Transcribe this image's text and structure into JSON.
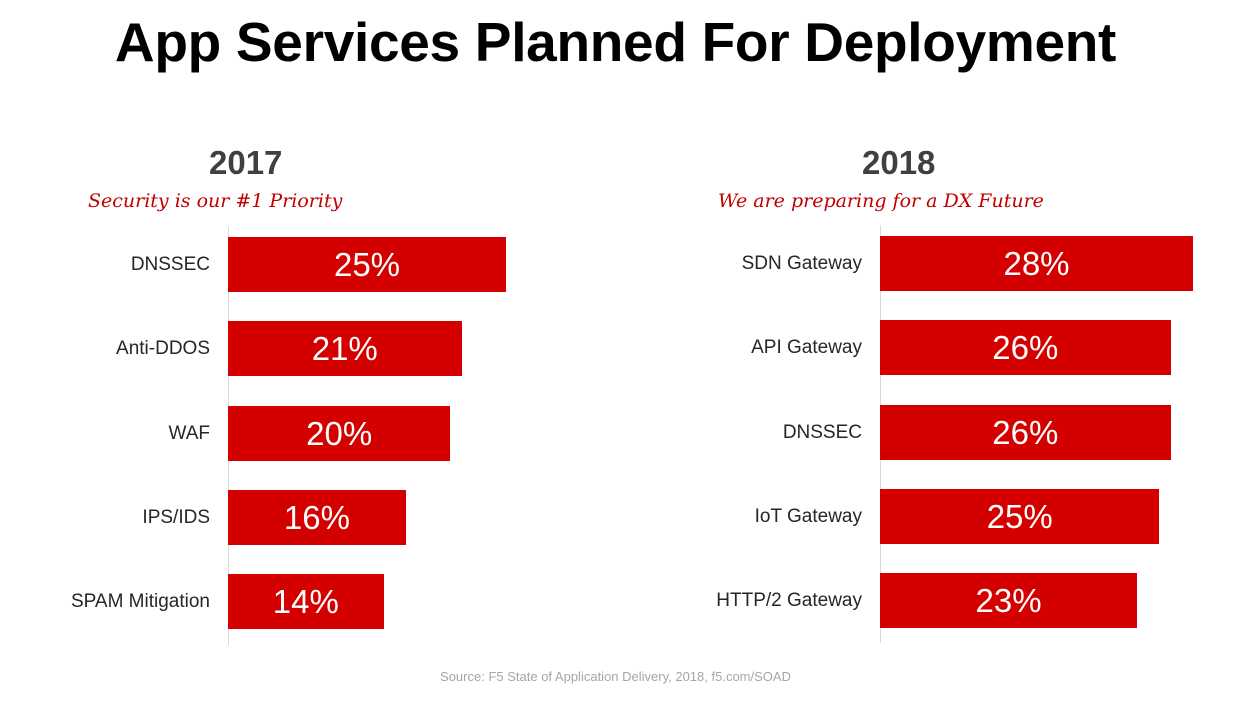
{
  "title": "App Services Planned For Deployment",
  "source": "Source: F5 State of Application Delivery, 2018, f5.com/SOAD",
  "colors": {
    "bar": "#d40000",
    "subtitle": "#c00000",
    "year": "#404040"
  },
  "chart_data": [
    {
      "type": "bar",
      "orientation": "horizontal",
      "title": "2017",
      "subtitle": "Security is our #1 Priority",
      "categories": [
        "DNSSEC",
        "Anti-DDOS",
        "WAF",
        "IPS/IDS",
        "SPAM Mitigation"
      ],
      "values": [
        25,
        21,
        20,
        16,
        14
      ],
      "value_labels": [
        "25%",
        "21%",
        "20%",
        "16%",
        "14%"
      ],
      "xlim": [
        0,
        25
      ],
      "grid": false
    },
    {
      "type": "bar",
      "orientation": "horizontal",
      "title": "2018",
      "subtitle": "We are preparing for a DX Future",
      "categories": [
        "SDN Gateway",
        "API Gateway",
        "DNSSEC",
        "IoT Gateway",
        "HTTP/2 Gateway"
      ],
      "values": [
        28,
        26,
        26,
        25,
        23
      ],
      "value_labels": [
        "28%",
        "26%",
        "26%",
        "25%",
        "23%"
      ],
      "xlim": [
        0,
        28
      ],
      "grid": false
    }
  ]
}
